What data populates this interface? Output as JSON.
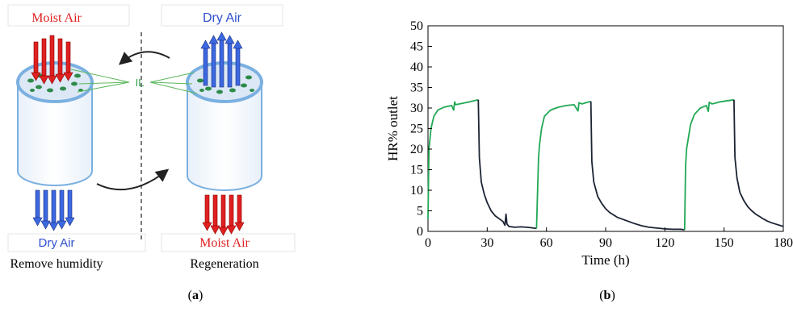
{
  "panel_a": {
    "top_left_label": "Moist Air",
    "top_right_label": "Dry Air",
    "il_label": "IL",
    "bottom_left_label": "Dry Air",
    "bottom_right_label": "Moist Air",
    "caption_left": "Remove humidity",
    "caption_right": "Regeneration",
    "colors": {
      "moist": "#e02020",
      "dry": "#3050d0",
      "il": "#2ea04a",
      "cylinder": "#7ab0e0"
    }
  },
  "panel_b": {
    "chart_data": {
      "type": "line",
      "xlabel": "Time (h)",
      "ylabel": "HR% outlet",
      "xlim": [
        0,
        180
      ],
      "ylim": [
        0,
        50
      ],
      "xticks": [
        "0",
        "30",
        "60",
        "90",
        "120",
        "150",
        "180"
      ],
      "yticks": [
        "0",
        "5",
        "10",
        "15",
        "20",
        "25",
        "30",
        "35",
        "40",
        "45",
        "50"
      ],
      "grid": false,
      "series": [
        {
          "color": "#22a855",
          "points": [
            [
              0,
              3
            ],
            [
              0.5,
              20
            ],
            [
              1.5,
              25
            ],
            [
              3,
              28
            ],
            [
              5,
              29.5
            ],
            [
              8,
              30.2
            ],
            [
              12,
              30.6
            ],
            [
              13,
              29.5
            ],
            [
              13.5,
              31.5
            ],
            [
              14,
              30.8
            ],
            [
              18,
              31.2
            ],
            [
              22,
              31.6
            ],
            [
              25.5,
              32
            ]
          ]
        },
        {
          "color": "#1c2333",
          "points": [
            [
              25.5,
              32
            ],
            [
              26,
              18
            ],
            [
              27,
              12
            ],
            [
              28.5,
              9
            ],
            [
              30,
              7
            ],
            [
              32,
              5
            ],
            [
              34,
              3.8
            ],
            [
              36,
              3.1
            ],
            [
              38,
              2.4
            ],
            [
              39,
              1.5
            ],
            [
              39.5,
              4.2
            ],
            [
              40,
              1.8
            ],
            [
              41,
              1.2
            ],
            [
              44,
              1.0
            ],
            [
              47,
              1.1
            ],
            [
              50,
              1.0
            ],
            [
              52,
              0.9
            ],
            [
              55,
              0.7
            ]
          ]
        },
        {
          "color": "#22a855",
          "points": [
            [
              55,
              0.7
            ],
            [
              56,
              18
            ],
            [
              56.5,
              21
            ],
            [
              57.5,
              25
            ],
            [
              59,
              28
            ],
            [
              62,
              29.5
            ],
            [
              66,
              30.2
            ],
            [
              70,
              30.6
            ],
            [
              74,
              30.8
            ],
            [
              76,
              29.3
            ],
            [
              76.5,
              31.3
            ],
            [
              78,
              31.0
            ],
            [
              80,
              31.3
            ],
            [
              82.5,
              31.6
            ]
          ]
        },
        {
          "color": "#1c2333",
          "points": [
            [
              82.5,
              31.6
            ],
            [
              83,
              17
            ],
            [
              84,
              12
            ],
            [
              86,
              8.5
            ],
            [
              88,
              6.8
            ],
            [
              90,
              5.5
            ],
            [
              92,
              4.6
            ],
            [
              94,
              4.0
            ],
            [
              96,
              3.4
            ],
            [
              100,
              2.7
            ],
            [
              104,
              2.0
            ],
            [
              108,
              1.4
            ],
            [
              112,
              1.0
            ],
            [
              116,
              0.8
            ],
            [
              120,
              0.6
            ],
            [
              124,
              0.5
            ],
            [
              128,
              0.5
            ],
            [
              130,
              0.4
            ]
          ]
        },
        {
          "color": "#22a855",
          "points": [
            [
              130,
              0.4
            ],
            [
              130.5,
              16
            ],
            [
              131,
              20
            ],
            [
              132,
              23
            ],
            [
              133,
              26
            ],
            [
              135,
              28.5
            ],
            [
              138,
              30
            ],
            [
              141,
              30.6
            ],
            [
              142,
              29.2
            ],
            [
              142.5,
              31.4
            ],
            [
              144,
              31.0
            ],
            [
              148,
              31.5
            ],
            [
              152,
              31.8
            ],
            [
              155,
              32
            ]
          ]
        },
        {
          "color": "#1c2333",
          "points": [
            [
              155,
              32
            ],
            [
              155.5,
              18
            ],
            [
              156.5,
              13
            ],
            [
              158,
              9.5
            ],
            [
              160,
              7.5
            ],
            [
              162,
              6.0
            ],
            [
              164,
              5.0
            ],
            [
              166,
              4.2
            ],
            [
              168,
              3.6
            ],
            [
              170,
              3.0
            ],
            [
              172,
              2.5
            ],
            [
              174,
              2.1
            ],
            [
              176,
              1.8
            ],
            [
              178,
              1.5
            ],
            [
              180,
              1.2
            ]
          ]
        }
      ]
    }
  },
  "captions": {
    "a_open": "(",
    "a_letter": "a",
    "a_close": ")",
    "b_open": "(",
    "b_letter": "b",
    "b_close": ")"
  }
}
